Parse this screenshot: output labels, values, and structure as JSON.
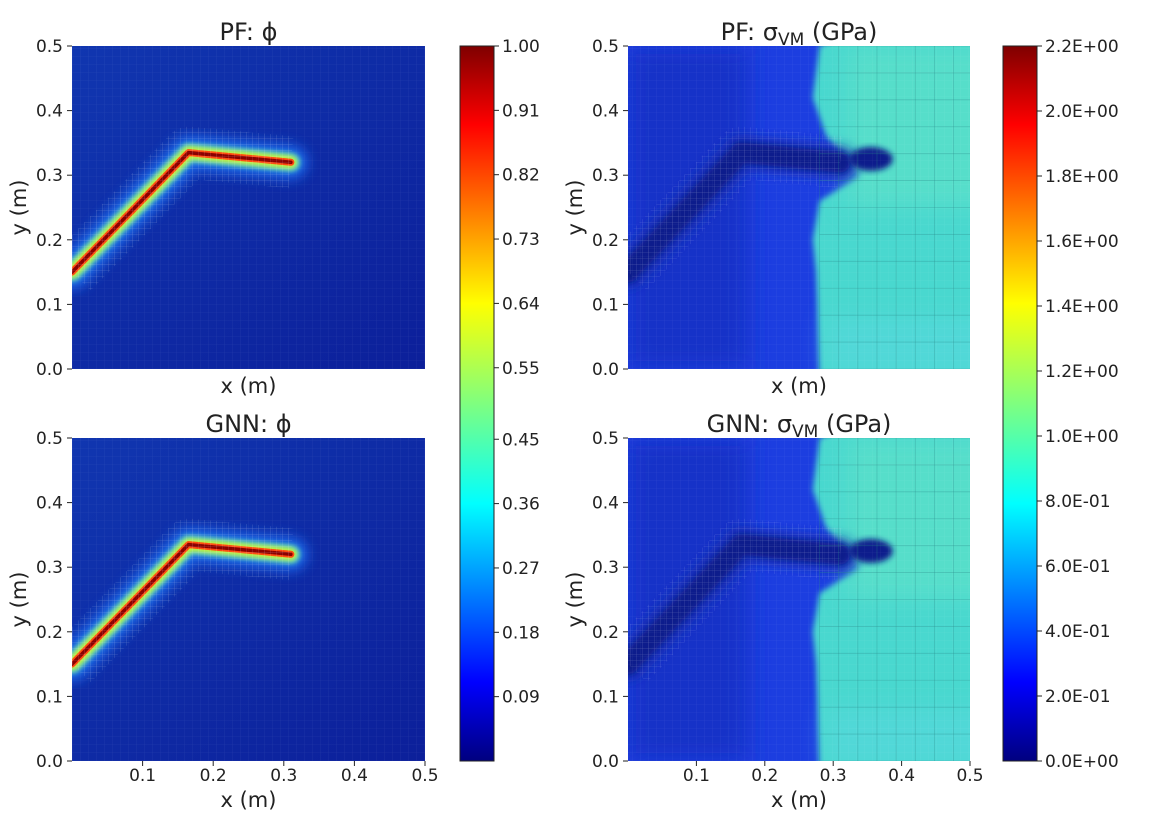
{
  "chart_data": [
    {
      "type": "heatmap",
      "title": "PF: ϕ",
      "xlabel": "x (m)",
      "ylabel": "y (m)",
      "xlim": [
        0,
        0.5
      ],
      "ylim": [
        0,
        0.5
      ],
      "x_ticks": [],
      "y_ticks": [
        "0.0",
        "0.1",
        "0.2",
        "0.3",
        "0.4",
        "0.5"
      ],
      "field": "phase",
      "crack_path": [
        [
          0.0,
          0.15
        ],
        [
          0.165,
          0.335
        ],
        [
          0.31,
          0.32
        ]
      ],
      "value_range": [
        0,
        1
      ]
    },
    {
      "type": "heatmap",
      "title": "PF: σVM (GPa)",
      "xlabel": "x (m)",
      "ylabel": "y (m)",
      "xlim": [
        0,
        0.5
      ],
      "ylim": [
        0,
        0.5
      ],
      "x_ticks": [],
      "y_ticks": [
        "0.0",
        "0.1",
        "0.2",
        "0.3",
        "0.4",
        "0.5"
      ],
      "field": "stress",
      "crack_path": [
        [
          0.0,
          0.15
        ],
        [
          0.165,
          0.335
        ],
        [
          0.31,
          0.32
        ]
      ],
      "value_range": [
        0,
        2.2
      ]
    },
    {
      "type": "heatmap",
      "title": "GNN: ϕ",
      "xlabel": "x (m)",
      "ylabel": "y (m)",
      "xlim": [
        0,
        0.5
      ],
      "ylim": [
        0,
        0.5
      ],
      "x_ticks": [
        "0.1",
        "0.2",
        "0.3",
        "0.4",
        "0.5"
      ],
      "y_ticks": [
        "0.0",
        "0.1",
        "0.2",
        "0.3",
        "0.4",
        "0.5"
      ],
      "field": "phase",
      "crack_path": [
        [
          0.0,
          0.15
        ],
        [
          0.165,
          0.335
        ],
        [
          0.31,
          0.32
        ]
      ],
      "value_range": [
        0,
        1
      ]
    },
    {
      "type": "heatmap",
      "title": "GNN: σVM (GPa)",
      "xlabel": "x (m)",
      "ylabel": "y (m)",
      "xlim": [
        0,
        0.5
      ],
      "ylim": [
        0,
        0.5
      ],
      "x_ticks": [
        "0.1",
        "0.2",
        "0.3",
        "0.4",
        "0.5"
      ],
      "y_ticks": [
        "0.0",
        "0.1",
        "0.2",
        "0.3",
        "0.4",
        "0.5"
      ],
      "field": "stress",
      "crack_path": [
        [
          0.0,
          0.15
        ],
        [
          0.165,
          0.335
        ],
        [
          0.31,
          0.32
        ]
      ],
      "value_range": [
        0,
        2.2
      ]
    }
  ],
  "colorbars": {
    "phase": {
      "ticks": [
        "1.00",
        "0.91",
        "0.82",
        "0.73",
        "0.64",
        "0.55",
        "0.45",
        "0.36",
        "0.27",
        "0.18",
        "0.09"
      ],
      "tick_values": [
        1.0,
        0.91,
        0.82,
        0.73,
        0.64,
        0.55,
        0.45,
        0.36,
        0.27,
        0.18,
        0.09
      ],
      "range": [
        0,
        1
      ]
    },
    "stress": {
      "ticks": [
        "2.2E+00",
        "2.0E+00",
        "1.8E+00",
        "1.6E+00",
        "1.4E+00",
        "1.2E+00",
        "1.0E+00",
        "8.0E-01",
        "6.0E-01",
        "4.0E-01",
        "2.0E-01",
        "0.0E+00"
      ],
      "tick_values": [
        2.2,
        2.0,
        1.8,
        1.6,
        1.4,
        1.2,
        1.0,
        0.8,
        0.6,
        0.4,
        0.2,
        0.0
      ],
      "range": [
        0,
        2.2
      ]
    }
  },
  "colors": {
    "deep_blue": "#0d1a8c",
    "mid_blue": "#1f4ae6",
    "cyan": "#50e0d0",
    "crack_core": "#8b0000"
  }
}
